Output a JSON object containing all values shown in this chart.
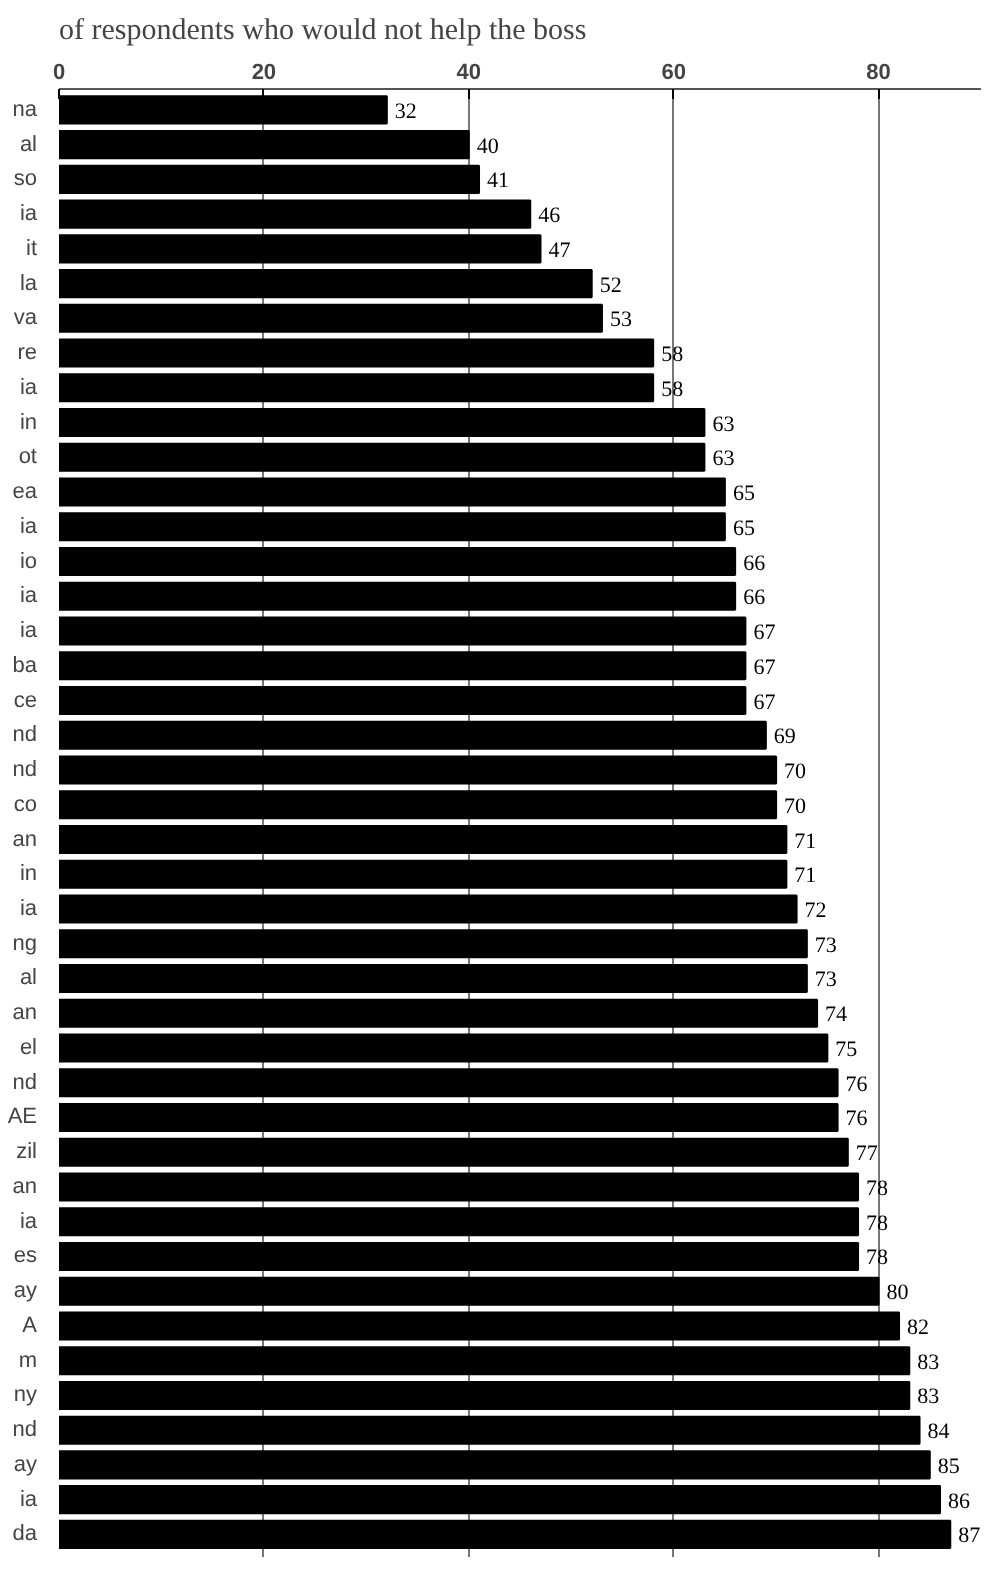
{
  "chart_data": {
    "type": "bar",
    "orientation": "horizontal",
    "title": "of respondents who would not help the boss",
    "categories": [
      "na",
      "al",
      "so",
      "ia",
      "it",
      "la",
      "va",
      "re",
      "ia",
      "in",
      "ot",
      "ea",
      "ia",
      "io",
      "ia",
      "ia",
      "ba",
      "ce",
      "nd",
      "nd",
      "co",
      "an",
      "in",
      "ia",
      "ng",
      "al",
      "an",
      "el",
      "nd",
      "AE",
      "zil",
      "an",
      "ia",
      "es",
      "ay",
      "A",
      "m",
      "ny",
      "nd",
      "ay",
      "ia",
      "da"
    ],
    "values": [
      32,
      40,
      41,
      46,
      47,
      52,
      53,
      58,
      58,
      63,
      63,
      65,
      65,
      66,
      66,
      67,
      67,
      67,
      69,
      70,
      70,
      71,
      71,
      72,
      73,
      73,
      74,
      75,
      76,
      76,
      77,
      78,
      78,
      78,
      80,
      82,
      83,
      83,
      84,
      85,
      86,
      87
    ],
    "color": "#000000",
    "xlim": [
      0,
      90
    ],
    "xticks": [
      0,
      20,
      40,
      60,
      80
    ],
    "grid": "x",
    "data_labels": true
  }
}
